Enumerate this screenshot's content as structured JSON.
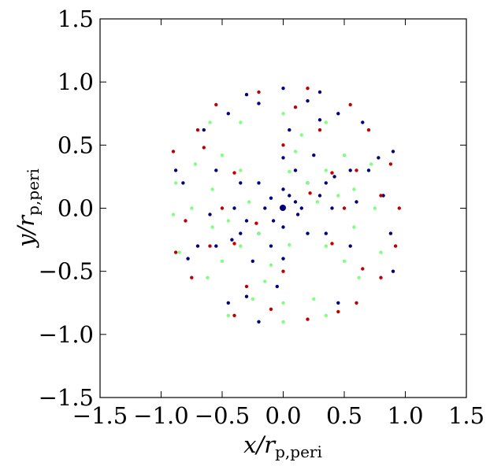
{
  "chart_data": {
    "type": "scatter",
    "xlabel": "x/r",
    "xlabel_sub": "p,peri",
    "ylabel": "y/r",
    "ylabel_sub": "p,peri",
    "xlim": [
      -1.5,
      1.5
    ],
    "ylim": [
      -1.5,
      1.5
    ],
    "xticks": [
      "−1.5",
      "−1.0",
      "−0.5",
      "0.0",
      "0.5",
      "1.0",
      "1.5"
    ],
    "yticks": [
      "1.5",
      "1.0",
      "0.5",
      "0.0",
      "−0.5",
      "−1.0",
      "−1.5"
    ],
    "grid": false,
    "series": [
      {
        "color": "#000080",
        "description": "dense inner disk plus thin outer arcs",
        "points": [
          [
            0.05,
            0.1
          ],
          [
            0.1,
            0.05
          ],
          [
            -0.1,
            0.08
          ],
          [
            -0.08,
            -0.1
          ],
          [
            0.12,
            -0.05
          ],
          [
            0.0,
            0.15
          ],
          [
            0.0,
            -0.15
          ],
          [
            0.15,
            0.0
          ],
          [
            -0.15,
            0.0
          ],
          [
            0.2,
            0.2
          ],
          [
            -0.2,
            0.2
          ],
          [
            0.2,
            -0.2
          ],
          [
            -0.2,
            -0.2
          ],
          [
            0.3,
            0.1
          ],
          [
            -0.3,
            -0.1
          ],
          [
            0.1,
            0.3
          ],
          [
            -0.1,
            -0.3
          ],
          [
            0.35,
            0.2
          ],
          [
            -0.35,
            0.2
          ],
          [
            0.35,
            -0.2
          ],
          [
            -0.35,
            -0.2
          ],
          [
            0.4,
            0.0
          ],
          [
            -0.4,
            0.0
          ],
          [
            0.0,
            0.4
          ],
          [
            0.0,
            -0.4
          ],
          [
            0.42,
            0.25
          ],
          [
            -0.42,
            -0.25
          ],
          [
            0.25,
            0.42
          ],
          [
            -0.25,
            -0.42
          ],
          [
            0.55,
            0.3
          ],
          [
            -0.55,
            0.3
          ],
          [
            0.55,
            -0.3
          ],
          [
            -0.55,
            -0.3
          ],
          [
            0.6,
            0.05
          ],
          [
            -0.6,
            -0.05
          ],
          [
            0.05,
            0.62
          ],
          [
            -0.05,
            -0.62
          ],
          [
            0.7,
            0.3
          ],
          [
            -0.7,
            -0.3
          ],
          [
            0.3,
            0.7
          ],
          [
            -0.3,
            -0.7
          ],
          [
            0.78,
            0.4
          ],
          [
            -0.78,
            -0.4
          ],
          [
            0.82,
            0.1
          ],
          [
            -0.82,
            0.2
          ],
          [
            0.2,
            0.85
          ],
          [
            -0.2,
            0.83
          ],
          [
            0.45,
            0.75
          ],
          [
            -0.45,
            0.75
          ],
          [
            0.45,
            -0.75
          ],
          [
            -0.45,
            -0.75
          ],
          [
            0.88,
            -0.2
          ],
          [
            -0.88,
            0.3
          ],
          [
            0.0,
            0.95
          ],
          [
            0.3,
            0.92
          ],
          [
            -0.3,
            0.9
          ],
          [
            0.9,
            0.45
          ],
          [
            0.65,
            0.68
          ],
          [
            -0.65,
            0.62
          ],
          [
            0.9,
            -0.5
          ],
          [
            -0.2,
            -0.9
          ]
        ]
      },
      {
        "color": "#80ff80",
        "description": "green rings at intermediate radii",
        "points": [
          [
            0.28,
            0.05
          ],
          [
            -0.28,
            0.05
          ],
          [
            0.05,
            0.29
          ],
          [
            0.05,
            -0.29
          ],
          [
            0.2,
            0.2
          ],
          [
            -0.2,
            -0.2
          ],
          [
            0.45,
            0.1
          ],
          [
            -0.45,
            -0.1
          ],
          [
            0.1,
            0.45
          ],
          [
            -0.1,
            -0.45
          ],
          [
            0.35,
            0.3
          ],
          [
            -0.35,
            0.3
          ],
          [
            0.35,
            -0.3
          ],
          [
            -0.35,
            -0.3
          ],
          [
            0.58,
            0.15
          ],
          [
            -0.58,
            0.15
          ],
          [
            0.58,
            -0.15
          ],
          [
            -0.58,
            -0.15
          ],
          [
            0.15,
            0.58
          ],
          [
            -0.15,
            -0.58
          ],
          [
            0.5,
            0.42
          ],
          [
            -0.5,
            0.42
          ],
          [
            0.5,
            -0.42
          ],
          [
            -0.5,
            -0.42
          ],
          [
            0.62,
            -0.55
          ],
          [
            -0.62,
            -0.55
          ],
          [
            0.25,
            -0.72
          ],
          [
            -0.25,
            -0.72
          ],
          [
            0.72,
            0.35
          ],
          [
            -0.72,
            0.35
          ],
          [
            0.75,
            0.0
          ],
          [
            -0.75,
            0.0
          ],
          [
            0.0,
            0.75
          ],
          [
            0.0,
            -0.75
          ],
          [
            -0.9,
            -0.05
          ],
          [
            -0.88,
            0.2
          ],
          [
            -0.85,
            -0.35
          ],
          [
            0.35,
            -0.85
          ],
          [
            0.0,
            -0.9
          ],
          [
            -0.45,
            -0.85
          ],
          [
            0.35,
            0.68
          ],
          [
            -0.35,
            0.68
          ],
          [
            0.8,
            -0.35
          ],
          [
            -0.6,
            0.68
          ]
        ]
      },
      {
        "color": "#c00000",
        "description": "red spiral rings toward the outer radii",
        "points": [
          [
            0.22,
            0.12
          ],
          [
            -0.22,
            -0.12
          ],
          [
            0.4,
            0.28
          ],
          [
            -0.4,
            0.28
          ],
          [
            0.4,
            -0.28
          ],
          [
            -0.4,
            -0.28
          ],
          [
            0.5,
            0.0
          ],
          [
            -0.5,
            0.0
          ],
          [
            0.0,
            0.5
          ],
          [
            0.0,
            -0.5
          ],
          [
            0.6,
            0.3
          ],
          [
            -0.6,
            -0.3
          ],
          [
            0.3,
            0.62
          ],
          [
            -0.3,
            -0.62
          ],
          [
            0.65,
            -0.48
          ],
          [
            -0.65,
            0.48
          ],
          [
            0.8,
            0.1
          ],
          [
            -0.8,
            -0.1
          ],
          [
            0.1,
            0.8
          ],
          [
            -0.1,
            -0.8
          ],
          [
            0.88,
            0.35
          ],
          [
            -0.88,
            -0.35
          ],
          [
            0.95,
            0.0
          ],
          [
            0.92,
            -0.3
          ],
          [
            0.7,
            0.62
          ],
          [
            -0.7,
            0.62
          ],
          [
            0.55,
            0.82
          ],
          [
            -0.55,
            0.82
          ],
          [
            0.2,
            0.95
          ],
          [
            -0.2,
            0.92
          ],
          [
            -0.75,
            -0.55
          ],
          [
            0.2,
            -0.88
          ],
          [
            -0.4,
            -0.85
          ],
          [
            0.6,
            -0.75
          ],
          [
            0.8,
            -0.55
          ],
          [
            -0.9,
            0.45
          ],
          [
            0.45,
            -0.82
          ]
        ]
      }
    ]
  }
}
